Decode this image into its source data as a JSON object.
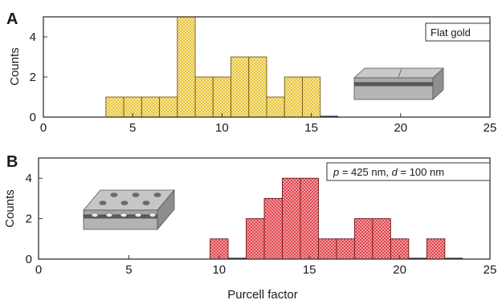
{
  "xlabel": "Purcell factor",
  "chart_data": [
    {
      "type": "bar",
      "panel": "A",
      "legend": "Flat gold",
      "ylabel": "Counts",
      "xlim": [
        0,
        25
      ],
      "ylim": [
        0,
        5
      ],
      "xticks": [
        0,
        5,
        10,
        15,
        20,
        25
      ],
      "yticks": [
        0,
        2,
        4
      ],
      "bin_width": 1,
      "color": "#e8c23a",
      "edge_color": "#6e5a10",
      "bins": [
        {
          "x": 3.5,
          "count": 1
        },
        {
          "x": 4.5,
          "count": 1
        },
        {
          "x": 5.5,
          "count": 1
        },
        {
          "x": 6.5,
          "count": 1
        },
        {
          "x": 7.5,
          "count": 5
        },
        {
          "x": 8.5,
          "count": 2
        },
        {
          "x": 9.5,
          "count": 2
        },
        {
          "x": 10.5,
          "count": 3
        },
        {
          "x": 11.5,
          "count": 3
        },
        {
          "x": 12.5,
          "count": 1
        },
        {
          "x": 13.5,
          "count": 2
        },
        {
          "x": 14.5,
          "count": 2
        },
        {
          "x": 15.5,
          "count": 0
        }
      ]
    },
    {
      "type": "bar",
      "panel": "B",
      "legend_parts": [
        {
          "text": "p",
          "italic": true
        },
        {
          "text": " = 425 nm, ",
          "italic": false
        },
        {
          "text": "d",
          "italic": true
        },
        {
          "text": " = 100 nm",
          "italic": false
        }
      ],
      "ylabel": "Counts",
      "xlim": [
        0,
        25
      ],
      "ylim": [
        0,
        5
      ],
      "xticks": [
        0,
        5,
        10,
        15,
        20,
        25
      ],
      "yticks": [
        0,
        2,
        4
      ],
      "bin_width": 1,
      "color": "#e0454d",
      "edge_color": "#6b1519",
      "bins": [
        {
          "x": 9.5,
          "count": 1
        },
        {
          "x": 10.5,
          "count": 0
        },
        {
          "x": 11.5,
          "count": 2
        },
        {
          "x": 12.5,
          "count": 3
        },
        {
          "x": 13.5,
          "count": 4
        },
        {
          "x": 14.5,
          "count": 4
        },
        {
          "x": 15.5,
          "count": 1
        },
        {
          "x": 16.5,
          "count": 1
        },
        {
          "x": 17.5,
          "count": 2
        },
        {
          "x": 18.5,
          "count": 2
        },
        {
          "x": 19.5,
          "count": 1
        },
        {
          "x": 20.5,
          "count": 0
        },
        {
          "x": 21.5,
          "count": 1
        },
        {
          "x": 22.5,
          "count": 0
        }
      ]
    }
  ]
}
